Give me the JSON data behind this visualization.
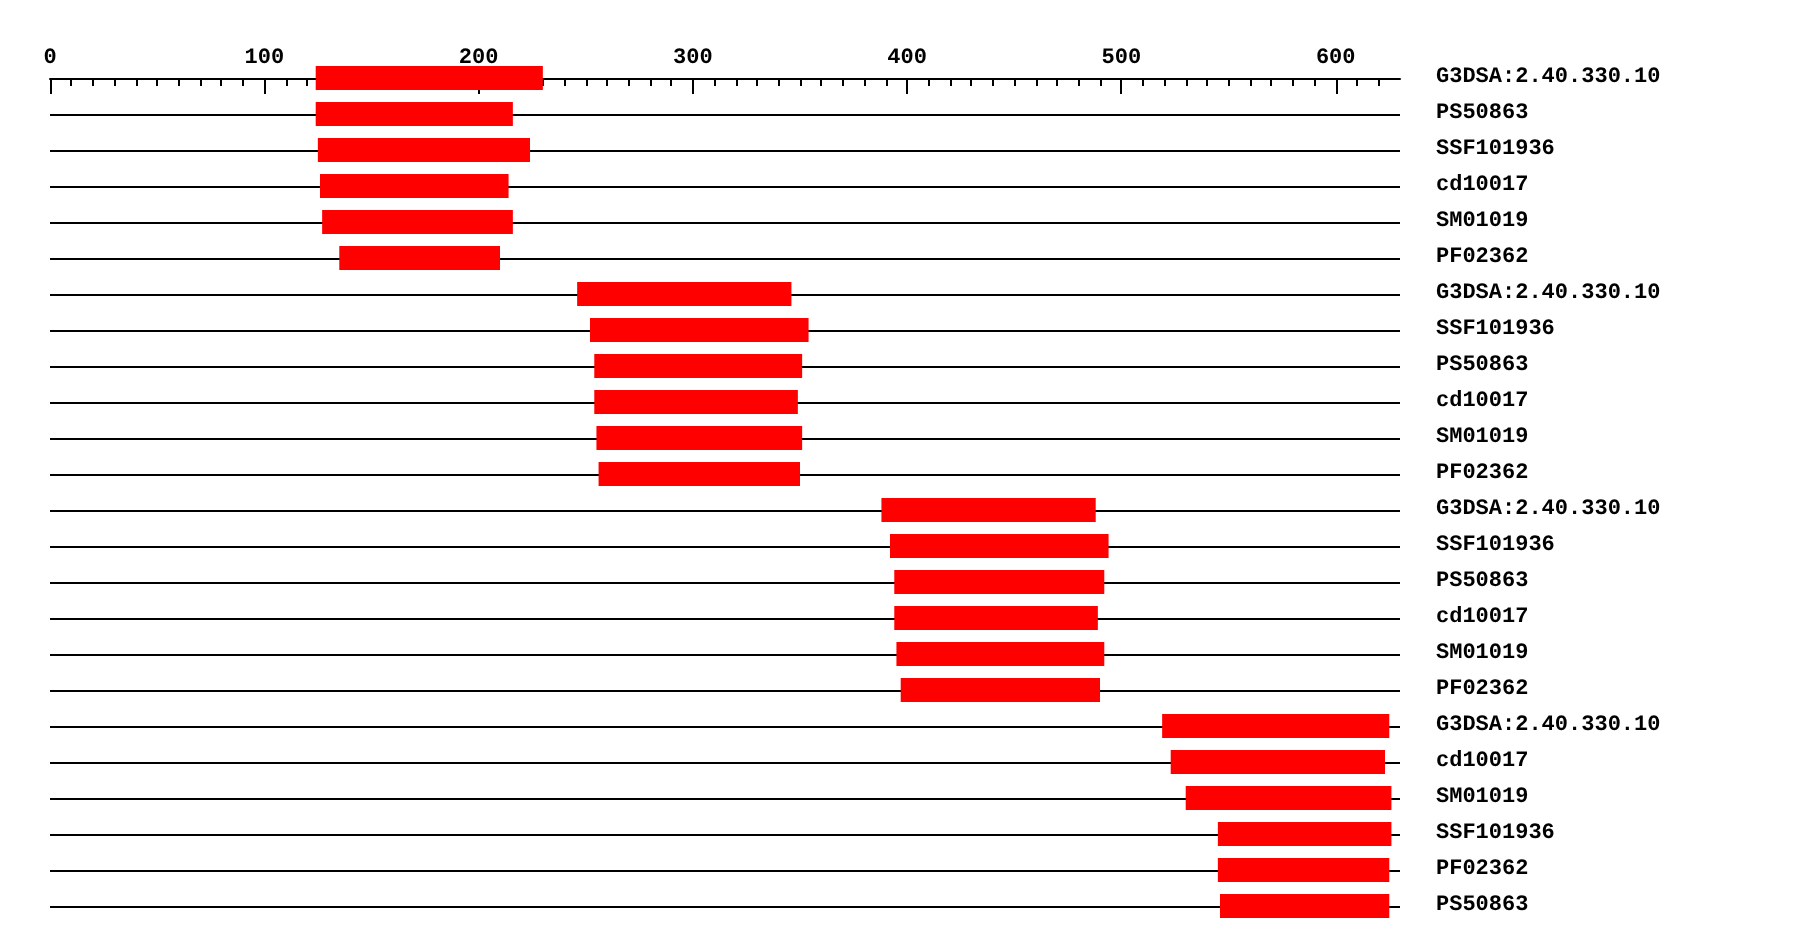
{
  "chart_data": {
    "type": "bar",
    "orientation": "horizontal",
    "grid": "y",
    "categories": [
      "G3DSA:2.40.330.10",
      "PS50863",
      "SSF101936",
      "cd10017",
      "SM01019",
      "PF02362",
      "G3DSA:2.40.330.10",
      "SSF101936",
      "PS50863",
      "cd10017",
      "SM01019",
      "PF02362",
      "G3DSA:2.40.330.10",
      "SSF101936",
      "PS50863",
      "cd10017",
      "SM01019",
      "PF02362",
      "G3DSA:2.40.330.10",
      "cd10017",
      "SM01019",
      "SSF101936",
      "PF02362",
      "PS50863"
    ],
    "series": [
      {
        "color": "#ff0000",
        "base": [
          124,
          124,
          125,
          126,
          127,
          135,
          246,
          252,
          254,
          254,
          255,
          256,
          388,
          392,
          394,
          394,
          395,
          397,
          519,
          523,
          530,
          545,
          545,
          546
        ],
        "values": [
          106,
          92,
          99,
          88,
          89,
          75,
          100,
          102,
          97,
          95,
          96,
          94,
          100,
          102,
          98,
          95,
          97,
          93,
          106,
          100,
          96,
          81,
          80,
          79
        ]
      }
    ],
    "xlim": [
      0,
      630
    ],
    "xticks": [
      0,
      100,
      200,
      300,
      400,
      500,
      600
    ]
  }
}
